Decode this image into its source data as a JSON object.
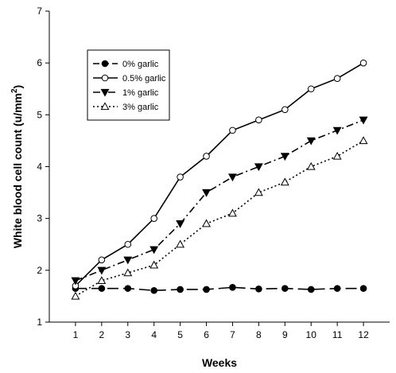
{
  "chart_data": {
    "type": "line",
    "title": "",
    "xlabel": "Weeks",
    "ylabel": "White blood cell count (u/mm",
    "ylabel_sup": "2",
    "ylabel_close": ")",
    "x": [
      1,
      2,
      3,
      4,
      5,
      6,
      7,
      8,
      9,
      10,
      11,
      12
    ],
    "xlim": [
      0,
      13
    ],
    "ylim": [
      1,
      7
    ],
    "yticks": [
      1,
      2,
      3,
      4,
      5,
      6,
      7
    ],
    "grid": false,
    "legend_position": "top-left",
    "series": [
      {
        "name": "0% garlic",
        "line_style": "long-dash",
        "marker": "filled-circle",
        "values": [
          1.65,
          1.65,
          1.65,
          1.61,
          1.63,
          1.63,
          1.67,
          1.64,
          1.65,
          1.63,
          1.65,
          1.65
        ]
      },
      {
        "name": "0.5% garlic",
        "line_style": "solid",
        "marker": "open-circle",
        "values": [
          1.7,
          2.2,
          2.5,
          3.0,
          3.8,
          4.2,
          4.7,
          4.9,
          5.1,
          5.5,
          5.7,
          6.0
        ]
      },
      {
        "name": "1% garlic",
        "line_style": "dash-dot",
        "marker": "filled-triangle-down",
        "values": [
          1.8,
          2.0,
          2.2,
          2.4,
          2.9,
          3.5,
          3.8,
          4.0,
          4.2,
          4.5,
          4.7,
          4.9
        ]
      },
      {
        "name": "3% garlic",
        "line_style": "dotted",
        "marker": "open-triangle-up",
        "values": [
          1.5,
          1.8,
          1.95,
          2.1,
          2.5,
          2.9,
          3.1,
          3.5,
          3.7,
          4.0,
          4.2,
          4.5
        ]
      }
    ]
  }
}
